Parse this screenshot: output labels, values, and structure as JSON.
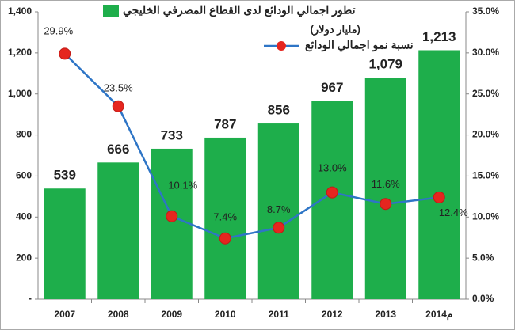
{
  "chart_data": {
    "type": "bar_line",
    "categories": [
      "2007",
      "2008",
      "2009",
      "2010",
      "2011",
      "2012",
      "2013",
      "2014م"
    ],
    "series": [
      {
        "name": "تطور اجمالي الودائع لدى القطاع المصرفي الخليجي",
        "type": "bar",
        "color": "#1eae4b",
        "values": [
          539,
          666,
          733,
          787,
          856,
          967,
          1079,
          1213
        ],
        "value_labels": [
          "539",
          "666",
          "733",
          "787",
          "856",
          "967",
          "1,079",
          "1,213"
        ]
      },
      {
        "name": "نسبة نمو اجمالي الودائع",
        "type": "line",
        "axis": "y2",
        "color": "#2e75c6",
        "marker_color": "#e5261f",
        "values": [
          29.9,
          23.5,
          10.1,
          7.4,
          8.7,
          13.0,
          11.6,
          12.4
        ],
        "value_labels": [
          "29.9%",
          "23.5%",
          "10.1%",
          "7.4%",
          "8.7%",
          "13.0%",
          "11.6%",
          "12.4%"
        ]
      }
    ],
    "legend_note": "(مليار دولار)",
    "ylim": [
      0,
      1400
    ],
    "yticks": [
      {
        "value": 0,
        "label": "-"
      },
      200,
      400,
      600,
      800,
      {
        "value": 1000,
        "label": "1,000"
      },
      {
        "value": 1200,
        "label": "1,200"
      },
      {
        "value": 1400,
        "label": "1,400"
      }
    ],
    "y2lim": [
      0,
      35
    ],
    "y2ticks": [
      {
        "value": 0,
        "label": "0.0%"
      },
      {
        "value": 5,
        "label": "5.0%"
      },
      {
        "value": 10,
        "label": "10.0%"
      },
      {
        "value": 15,
        "label": "15.0%"
      },
      {
        "value": 20,
        "label": "20.0%"
      },
      {
        "value": 25,
        "label": "25.0%"
      },
      {
        "value": 30,
        "label": "30.0%"
      },
      {
        "value": 35,
        "label": "35.0%"
      }
    ],
    "grid": false
  }
}
